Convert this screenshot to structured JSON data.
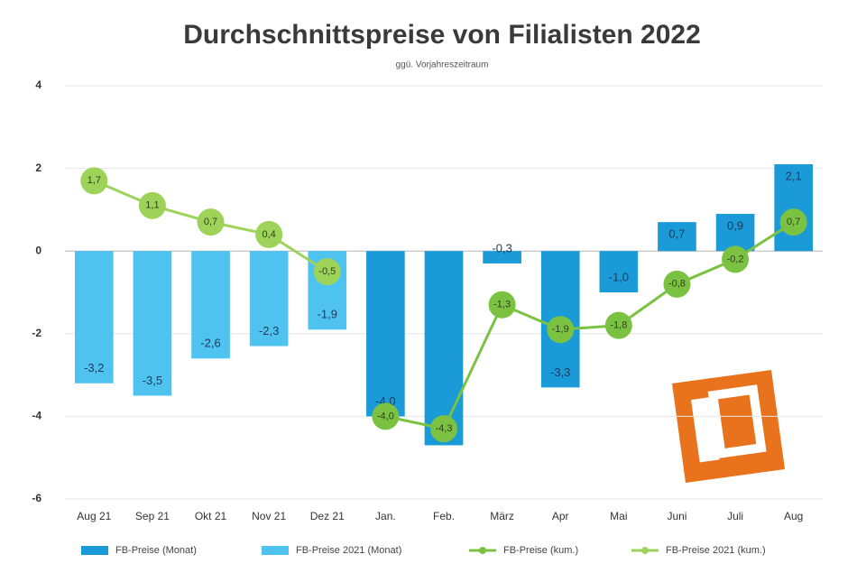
{
  "chart_data": {
    "type": "bar",
    "title": "Durchschnittspreise von Filialisten 2022",
    "subtitle": "ggü. Vorjahreszeitraum",
    "categories": [
      "Aug 21",
      "Sep 21",
      "Okt 21",
      "Nov 21",
      "Dez 21",
      "Jan.",
      "Feb.",
      "März",
      "Apr",
      "Mai",
      "Juni",
      "Juli",
      "Aug"
    ],
    "ylim": [
      -6,
      4
    ],
    "yticks": [
      -6,
      -4,
      -2,
      0,
      2,
      4
    ],
    "grid": true,
    "series": [
      {
        "name": "FB-Preise (Monat)",
        "kind": "bar",
        "color": "#1a9ad6",
        "values": [
          null,
          null,
          null,
          null,
          null,
          -4.0,
          -4.7,
          -0.3,
          -3.3,
          -1.0,
          0.7,
          0.9,
          2.1
        ],
        "value_labels": [
          null,
          null,
          null,
          null,
          null,
          "-4,0",
          "-4,7",
          "-0,3",
          "-3,3",
          "-1,0",
          "0,7",
          "0,9",
          "2,1"
        ]
      },
      {
        "name": "FB-Preise 2021 (Monat)",
        "kind": "bar",
        "color": "#4fc3f0",
        "values": [
          -3.2,
          -3.5,
          -2.6,
          -2.3,
          -1.9,
          null,
          null,
          null,
          null,
          null,
          null,
          null,
          null
        ],
        "value_labels": [
          "-3,2",
          "-3,5",
          "-2,6",
          "-2,3",
          "-1,9",
          null,
          null,
          null,
          null,
          null,
          null,
          null,
          null
        ]
      },
      {
        "name": "FB-Preise (kum.)",
        "kind": "line",
        "color": "#7cc242",
        "values": [
          null,
          null,
          null,
          null,
          null,
          -4.0,
          -4.3,
          -1.3,
          -1.9,
          -1.8,
          -0.8,
          -0.2,
          0.7
        ],
        "value_labels": [
          null,
          null,
          null,
          null,
          null,
          "-4,0",
          "-4,3",
          "-1,3",
          "-1,9",
          "-1,8",
          "-0,8",
          "-0,2",
          "0,7"
        ]
      },
      {
        "name": "FB-Preise 2021 (kum.)",
        "kind": "line",
        "color": "#9ed35a",
        "values": [
          1.7,
          1.1,
          0.7,
          0.4,
          -0.5,
          null,
          null,
          null,
          null,
          null,
          null,
          null,
          null
        ],
        "value_labels": [
          "1,7",
          "1,1",
          "0,7",
          "0,4",
          "-0,5",
          null,
          null,
          null,
          null,
          null,
          null,
          null,
          null
        ]
      }
    ]
  }
}
